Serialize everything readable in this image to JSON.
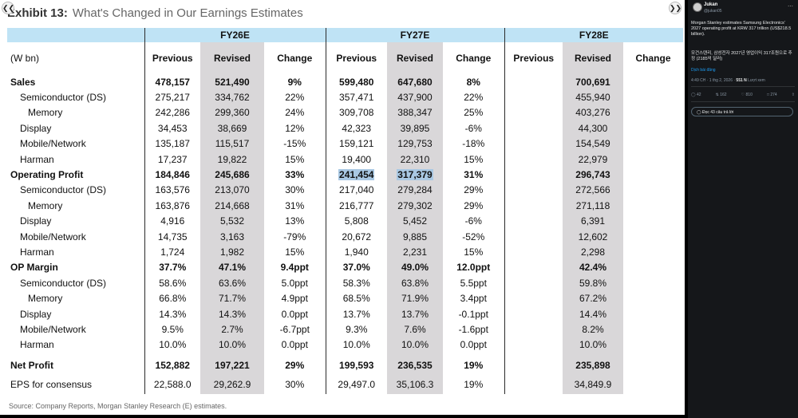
{
  "slide": {
    "exhibit": "Exhibit 13:",
    "title": "What's Changed in Our Earnings Estimates",
    "unit_label": "(W bn)",
    "years": [
      "FY26E",
      "FY27E",
      "FY28E"
    ],
    "col_headers": [
      "Previous",
      "Revised",
      "Change"
    ],
    "rows": [
      {
        "label": "Sales",
        "vals": [
          "478,157",
          "521,490",
          "9%",
          "599,480",
          "647,680",
          "8%",
          "",
          "700,691",
          ""
        ]
      },
      {
        "label": "Semiconductor (DS)",
        "vals": [
          "275,217",
          "334,762",
          "22%",
          "357,471",
          "437,900",
          "22%",
          "",
          "455,940",
          ""
        ]
      },
      {
        "label": "Memory",
        "vals": [
          "242,286",
          "299,360",
          "24%",
          "309,708",
          "388,347",
          "25%",
          "",
          "403,276",
          ""
        ]
      },
      {
        "label": "Display",
        "vals": [
          "34,453",
          "38,669",
          "12%",
          "42,323",
          "39,895",
          "-6%",
          "",
          "44,300",
          ""
        ]
      },
      {
        "label": "Mobile/Network",
        "vals": [
          "135,187",
          "115,517",
          "-15%",
          "159,121",
          "129,753",
          "-18%",
          "",
          "154,549",
          ""
        ]
      },
      {
        "label": "Harman",
        "vals": [
          "17,237",
          "19,822",
          "15%",
          "19,400",
          "22,310",
          "15%",
          "",
          "22,979",
          ""
        ]
      },
      {
        "label": "Operating Profit",
        "vals": [
          "184,846",
          "245,686",
          "33%",
          "241,454",
          "317,379",
          "31%",
          "",
          "296,743",
          ""
        ]
      },
      {
        "label": "Semiconductor (DS)",
        "vals": [
          "163,576",
          "213,070",
          "30%",
          "217,040",
          "279,284",
          "29%",
          "",
          "272,566",
          ""
        ]
      },
      {
        "label": "Memory",
        "vals": [
          "163,876",
          "214,668",
          "31%",
          "216,777",
          "279,302",
          "29%",
          "",
          "271,118",
          ""
        ]
      },
      {
        "label": "Display",
        "vals": [
          "4,916",
          "5,532",
          "13%",
          "5,808",
          "5,452",
          "-6%",
          "",
          "6,391",
          ""
        ]
      },
      {
        "label": "Mobile/Network",
        "vals": [
          "14,735",
          "3,163",
          "-79%",
          "20,672",
          "9,885",
          "-52%",
          "",
          "12,602",
          ""
        ]
      },
      {
        "label": "Harman",
        "vals": [
          "1,724",
          "1,982",
          "15%",
          "1,940",
          "2,231",
          "15%",
          "",
          "2,298",
          ""
        ]
      },
      {
        "label": "OP Margin",
        "vals": [
          "37.7%",
          "47.1%",
          "9.4ppt",
          "37.0%",
          "49.0%",
          "12.0ppt",
          "",
          "42.4%",
          ""
        ]
      },
      {
        "label": "Semiconductor (DS)",
        "vals": [
          "58.6%",
          "63.6%",
          "5.0ppt",
          "58.3%",
          "63.8%",
          "5.5ppt",
          "",
          "59.8%",
          ""
        ]
      },
      {
        "label": "Memory",
        "vals": [
          "66.8%",
          "71.7%",
          "4.9ppt",
          "68.5%",
          "71.9%",
          "3.4ppt",
          "",
          "67.2%",
          ""
        ]
      },
      {
        "label": "Display",
        "vals": [
          "14.3%",
          "14.3%",
          "0.0ppt",
          "13.7%",
          "13.7%",
          "-0.1ppt",
          "",
          "14.4%",
          ""
        ]
      },
      {
        "label": "Mobile/Network",
        "vals": [
          "9.5%",
          "2.7%",
          "-6.7ppt",
          "9.3%",
          "7.6%",
          "-1.6ppt",
          "",
          "8.2%",
          ""
        ]
      },
      {
        "label": "Harman",
        "vals": [
          "10.0%",
          "10.0%",
          "0.0ppt",
          "10.0%",
          "10.0%",
          "0.0ppt",
          "",
          "10.0%",
          ""
        ]
      },
      {
        "label": "Net Profit",
        "vals": [
          "152,882",
          "197,221",
          "29%",
          "199,593",
          "236,535",
          "19%",
          "",
          "235,898",
          ""
        ]
      },
      {
        "label": "EPS for consensus",
        "vals": [
          "22,588.0",
          "29,262.9",
          "30%",
          "29,497.0",
          "35,106.3",
          "19%",
          "",
          "34,849.9",
          ""
        ]
      }
    ],
    "source": "Source: Company Reports, Morgan Stanley Research (E) estimates."
  },
  "viewer": {
    "prev_icon": "chevron-left-icon",
    "next_icon": "chevron-right-icon"
  },
  "post": {
    "author": "Jukan",
    "handle": "@jukan05",
    "text_en": "Morgan Stanley estimates Samsung Electronics' 2027 operating profit at KRW 317 trillion (US$218.5 billion).",
    "text_ko": "모건스탠리, 삼성전자 2027년 영업이익 317조원으로 추정 (2185억 달러)",
    "translate": "Dịch bài đăng",
    "time": "4:49 CH · 1 thg 2, 2026 · ",
    "views_count": "551 N",
    "views_label": "Lượt xem",
    "replies": "42",
    "reposts": "162",
    "likes": "810",
    "bookmarks": "274",
    "read_replies": "Đọc 43 câu trả lời"
  }
}
